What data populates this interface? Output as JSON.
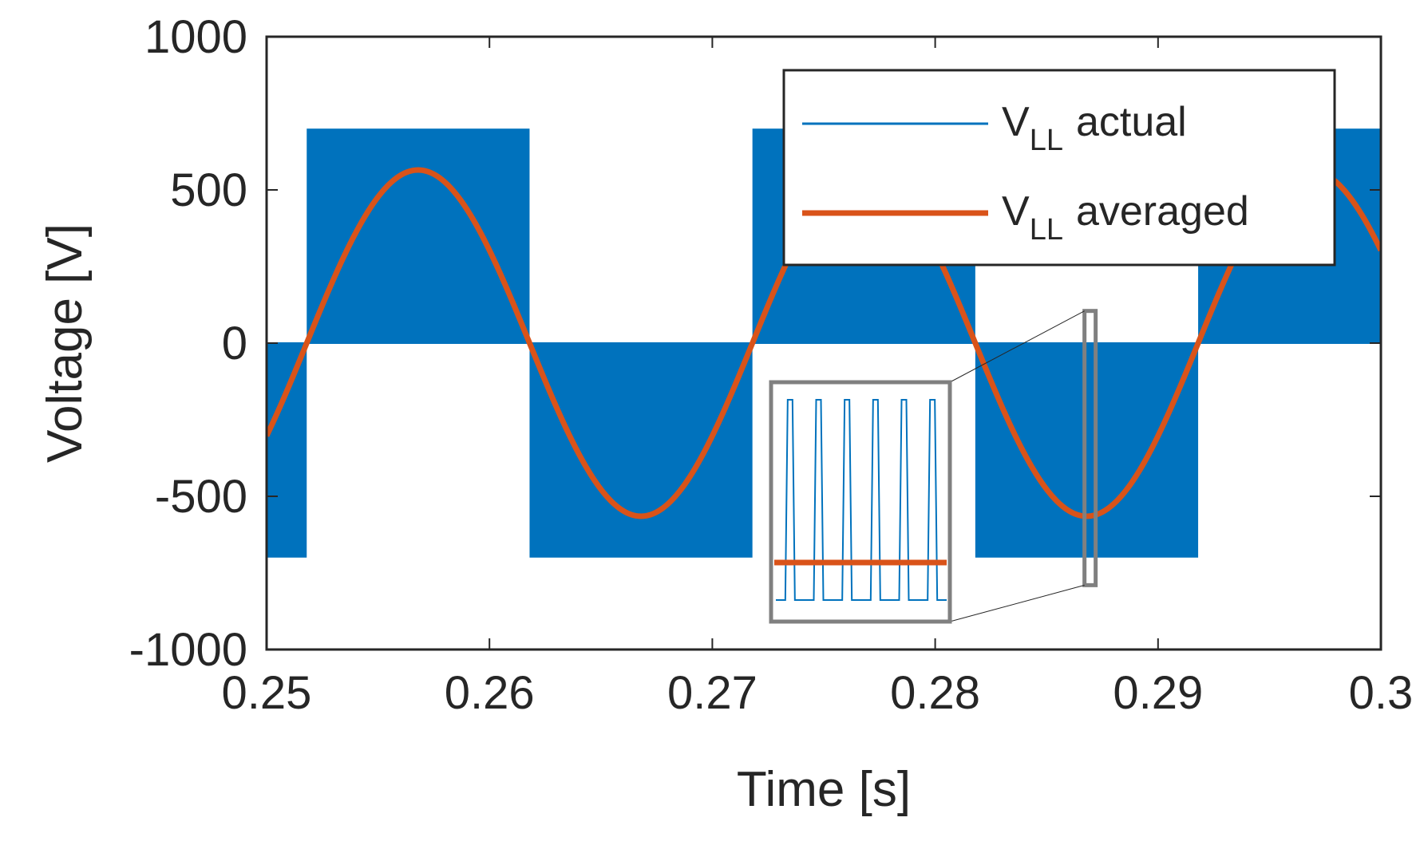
{
  "chart_data": {
    "type": "line",
    "xlabel": "Time [s]",
    "ylabel": "Voltage [V]",
    "xlim": [
      0.25,
      0.3
    ],
    "ylim": [
      -1000,
      1000
    ],
    "xticks": [
      0.25,
      0.26,
      0.27,
      0.28,
      0.29,
      0.3
    ],
    "xtick_labels": [
      "0.25",
      "0.26",
      "0.27",
      "0.28",
      "0.29",
      "0.3"
    ],
    "yticks": [
      1000,
      500,
      0,
      -500,
      -1000
    ],
    "ytick_labels": [
      "1000",
      "500",
      "0",
      "-500",
      "-1000"
    ],
    "grid": false,
    "legend_position": "top-right",
    "series": [
      {
        "name": "V_LL actual",
        "label_main": "V",
        "label_sub": "LL",
        "label_rest": "actual",
        "color": "#0072BD",
        "kind": "pwm",
        "amplitude": 700,
        "description": "PWM pulses between 0 and ±700 V, polarity following the averaged sine",
        "blocks": [
          {
            "t0": 0.25,
            "t1": 0.2518,
            "level": -700
          },
          {
            "t0": 0.2518,
            "t1": 0.2618,
            "level": 700
          },
          {
            "t0": 0.2618,
            "t1": 0.2718,
            "level": -700
          },
          {
            "t0": 0.2718,
            "t1": 0.2818,
            "level": 700
          },
          {
            "t0": 0.2818,
            "t1": 0.2918,
            "level": -700
          },
          {
            "t0": 0.2918,
            "t1": 0.3,
            "level": 700
          }
        ]
      },
      {
        "name": "V_LL averaged",
        "label_main": "V",
        "label_sub": "LL",
        "label_rest": "averaged",
        "color": "#D95319",
        "kind": "sine",
        "amplitude": 565,
        "frequency_hz": 50,
        "zero_crossing_s": 0.2518
      }
    ],
    "inset": {
      "zoom_region": {
        "t0": 0.2867,
        "t1": 0.2872,
        "v0": -790,
        "v1": 105
      },
      "pulse_count": 6,
      "series_colors": [
        "#0072BD",
        "#D95319"
      ]
    }
  }
}
